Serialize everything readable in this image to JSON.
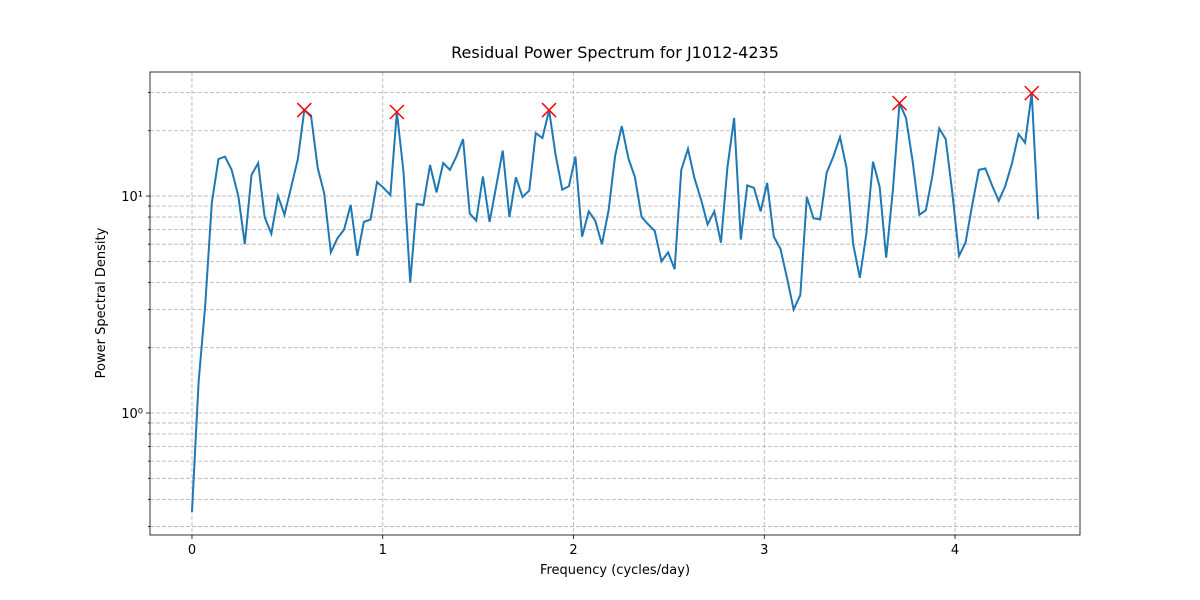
{
  "chart_data": {
    "type": "line",
    "title": "Residual Power Spectrum for J1012-4235",
    "xlabel": "Frequency (cycles/day)",
    "ylabel": "Power Spectral Density",
    "xlim": [
      -0.22,
      4.655
    ],
    "ylim": [
      0.274,
      37.3
    ],
    "yscale": "log",
    "grid": true,
    "xticks": [
      0,
      1,
      2,
      3,
      4
    ],
    "yticks": [
      {
        "value": 1,
        "label": "10⁰"
      },
      {
        "value": 10,
        "label": "10¹"
      }
    ],
    "yminorticks": [
      0.3,
      0.4,
      0.5,
      0.6,
      0.7,
      0.8,
      0.9,
      2,
      3,
      4,
      5,
      6,
      7,
      8,
      9,
      20,
      30
    ],
    "series": [
      {
        "color": "#1f77b4",
        "marker": "none",
        "x": [
          0,
          0.035,
          0.069,
          0.104,
          0.139,
          0.173,
          0.208,
          0.243,
          0.277,
          0.312,
          0.347,
          0.381,
          0.416,
          0.451,
          0.485,
          0.52,
          0.555,
          0.589,
          0.624,
          0.659,
          0.693,
          0.728,
          0.763,
          0.797,
          0.832,
          0.867,
          0.901,
          0.936,
          0.97,
          1.005,
          1.04,
          1.074,
          1.109,
          1.144,
          1.178,
          1.213,
          1.248,
          1.282,
          1.317,
          1.352,
          1.386,
          1.421,
          1.456,
          1.49,
          1.525,
          1.56,
          1.594,
          1.629,
          1.664,
          1.698,
          1.733,
          1.768,
          1.802,
          1.837,
          1.872,
          1.906,
          1.941,
          1.976,
          2.01,
          2.045,
          2.08,
          2.114,
          2.149,
          2.184,
          2.218,
          2.253,
          2.288,
          2.322,
          2.357,
          2.392,
          2.426,
          2.461,
          2.496,
          2.53,
          2.565,
          2.6,
          2.634,
          2.669,
          2.703,
          2.738,
          2.773,
          2.807,
          2.842,
          2.877,
          2.911,
          2.946,
          2.981,
          3.015,
          3.05,
          3.085,
          3.119,
          3.154,
          3.189,
          3.223,
          3.258,
          3.293,
          3.327,
          3.362,
          3.397,
          3.431,
          3.466,
          3.501,
          3.535,
          3.57,
          3.605,
          3.639,
          3.674,
          3.709,
          3.743,
          3.778,
          3.813,
          3.847,
          3.882,
          3.917,
          3.951,
          3.986,
          4.021,
          4.055,
          4.09,
          4.125,
          4.159,
          4.194,
          4.229,
          4.263,
          4.298,
          4.333,
          4.367,
          4.402,
          4.436
        ],
        "values": [
          0.35,
          1.4,
          3.1,
          9.3,
          14.8,
          15.2,
          13.2,
          10,
          6.0,
          12.5,
          14.2,
          8.0,
          6.7,
          10,
          8.2,
          11,
          14.8,
          24.9,
          23.5,
          13.5,
          10.3,
          5.5,
          6.4,
          7.0,
          9.1,
          5.3,
          7.6,
          7.8,
          11.6,
          10.9,
          10.1,
          24.4,
          12.9,
          4.0,
          9.2,
          9.1,
          13.9,
          10.4,
          14.2,
          13.2,
          15.2,
          18.3,
          8.3,
          7.7,
          12.3,
          7.6,
          11,
          16.2,
          8.0,
          12.2,
          9.9,
          10.6,
          19.5,
          18.5,
          24.9,
          15.5,
          10.7,
          11.1,
          15.2,
          6.5,
          8.5,
          7.7,
          6.0,
          8.6,
          15.3,
          21,
          14.9,
          12.2,
          8.0,
          7.4,
          6.9,
          5.0,
          5.5,
          4.6,
          13.2,
          16.5,
          12.1,
          9.6,
          7.4,
          8.5,
          6.1,
          13.6,
          22.9,
          6.3,
          11.2,
          10.9,
          8.5,
          11.5,
          6.5,
          5.7,
          4.2,
          3.0,
          3.5,
          9.9,
          7.9,
          7.8,
          12.8,
          15.2,
          18.7,
          13.5,
          6.0,
          4.2,
          6.7,
          14.4,
          11,
          5.2,
          10.6,
          26.8,
          22.9,
          14.4,
          8.2,
          8.6,
          12.5,
          20.5,
          18.3,
          10.3,
          5.3,
          6.1,
          9.1,
          13.2,
          13.4,
          11.2,
          9.5,
          11.1,
          14.1,
          19.3,
          17.6,
          29.8,
          7.8
        ]
      },
      {
        "color": "#ff0000",
        "marker": "x",
        "x": [
          0.589,
          1.074,
          1.872,
          3.709,
          4.402
        ],
        "values": [
          24.9,
          24.4,
          24.9,
          26.8,
          29.8
        ]
      }
    ]
  }
}
